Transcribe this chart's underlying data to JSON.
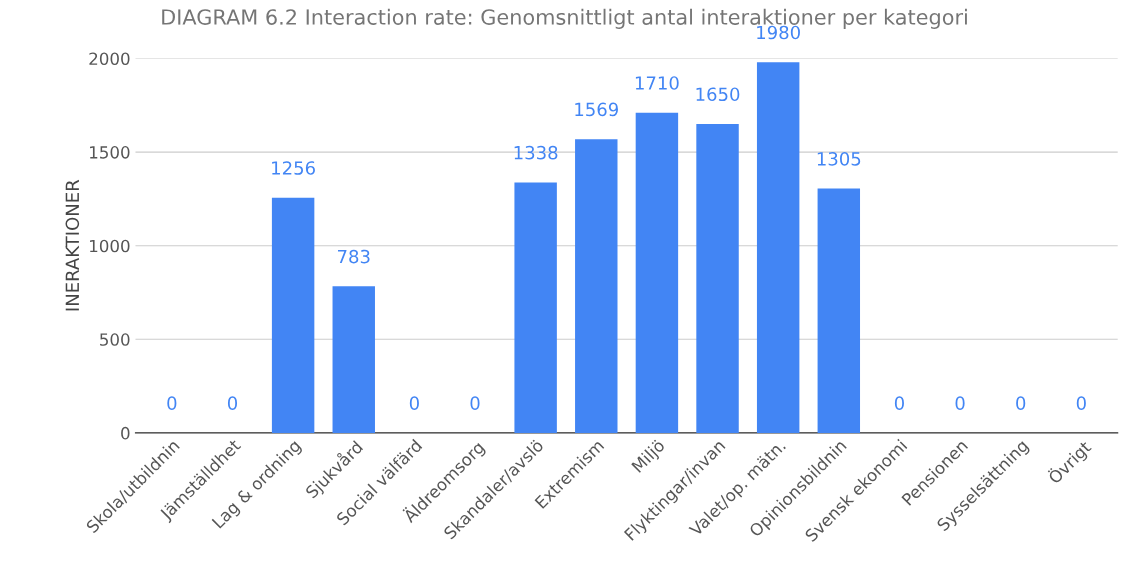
{
  "chart_data": {
    "type": "bar",
    "title": "DIAGRAM 6.2 Interaction rate: Genomsnittligt antal interaktioner per kategori",
    "ylabel": "INERAKTIONER",
    "categories": [
      "Skola/utbildnin",
      "Jämställdhet",
      "Lag & ordning",
      "Sjukvård",
      "Social välfärd",
      "Äldreomsorg",
      "Skandaler/avslö",
      "Extremism",
      "Miljö",
      "Flyktingar/invan",
      "Valet/op. mätn.",
      "Opinionsbildnin",
      "Svensk ekonomi",
      "Pensionen",
      "Sysselsättning",
      "Övrigt"
    ],
    "values": [
      0,
      0,
      1256,
      783,
      0,
      0,
      1338,
      1569,
      1710,
      1650,
      1980,
      1305,
      0,
      0,
      0,
      0
    ],
    "color": "#4285f4",
    "ylim": [
      0,
      2000
    ],
    "yticks": [
      0,
      500,
      1000,
      1500,
      2000
    ],
    "grid": "y",
    "data_labels": true,
    "legend": false
  }
}
